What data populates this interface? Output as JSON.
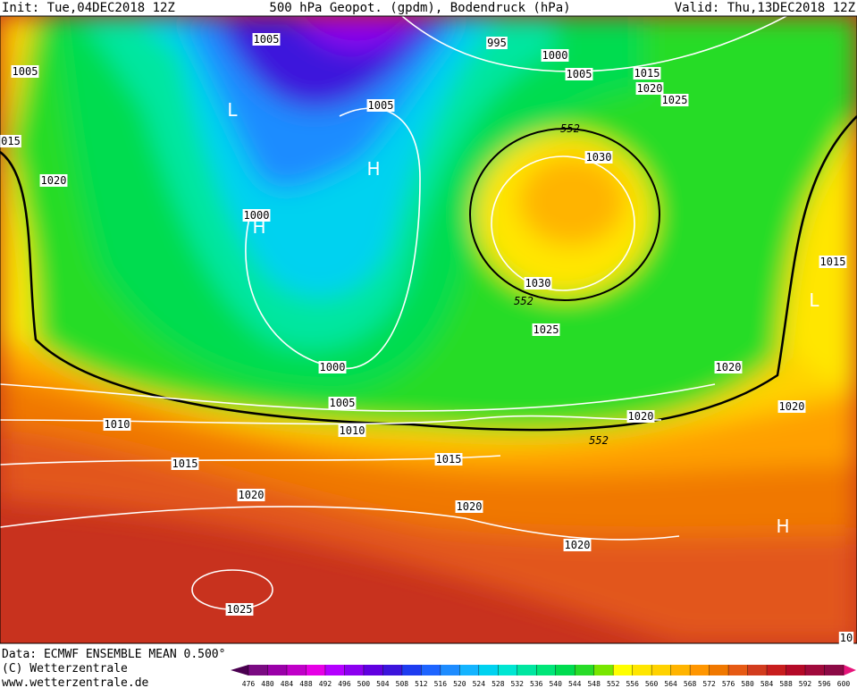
{
  "header": {
    "init": "Init: Tue,04DEC2018 12Z",
    "title": "500 hPa Geopot. (gpdm), Bodendruck (hPa)",
    "valid": "Valid: Thu,13DEC2018 12Z"
  },
  "map": {
    "labels": [
      "1005",
      "995",
      "1000",
      "1005",
      "1005",
      "1015",
      "1020",
      "1025",
      "1005",
      "552",
      "015",
      "1030",
      "1020",
      "1000",
      "1015",
      "1030",
      "552",
      "1025",
      "1000",
      "1020",
      "1005",
      "1020",
      "1020",
      "1010",
      "1010",
      "552",
      "1015",
      "1015",
      "1020",
      "1020",
      "1020",
      "1025",
      "10"
    ],
    "markers": [
      "L",
      "H",
      "H",
      "L",
      "H"
    ]
  },
  "footer": {
    "data": "Data: ECMWF ENSEMBLE MEAN 0.500°",
    "copyright": "(C) Wetterzentrale",
    "url": "www.wetterzentrale.de"
  },
  "colorbar": {
    "ticks": [
      476,
      480,
      484,
      488,
      492,
      496,
      500,
      504,
      508,
      512,
      516,
      520,
      524,
      528,
      532,
      536,
      540,
      544,
      548,
      552,
      556,
      560,
      564,
      568,
      572,
      576,
      580,
      584,
      588,
      592,
      596,
      600
    ],
    "colors": [
      "#4a0050",
      "#7a0a82",
      "#9a00a8",
      "#c000c8",
      "#e600e6",
      "#b400ff",
      "#8c00f0",
      "#6000e0",
      "#3c14dc",
      "#1e3cf0",
      "#1e64ff",
      "#1e8cff",
      "#14b4ff",
      "#00d2f0",
      "#00e6d2",
      "#00e6a0",
      "#00e678",
      "#00dc50",
      "#28dc28",
      "#78e600",
      "#ffff00",
      "#ffe600",
      "#ffd200",
      "#ffb400",
      "#ff9600",
      "#f07800",
      "#e65a14",
      "#d23c1e",
      "#c81e1e",
      "#b40a28",
      "#a00a3c",
      "#8c0a46",
      "#e6147a"
    ]
  }
}
